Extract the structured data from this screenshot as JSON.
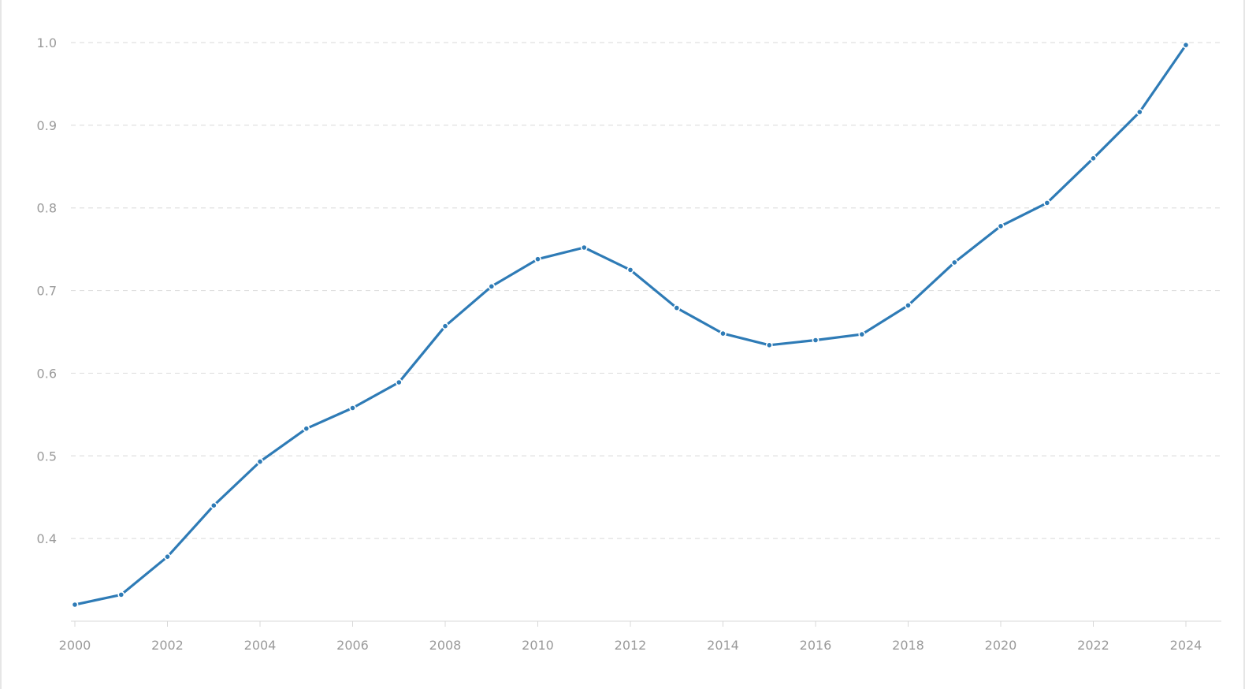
{
  "chart_data": {
    "type": "line",
    "title": "",
    "xlabel": "",
    "ylabel": "",
    "x": [
      2000,
      2001,
      2002,
      2003,
      2004,
      2005,
      2006,
      2007,
      2008,
      2009,
      2010,
      2011,
      2012,
      2013,
      2014,
      2015,
      2016,
      2017,
      2018,
      2019,
      2020,
      2021,
      2022,
      2023,
      2024
    ],
    "series": [
      {
        "values": [
          0.32,
          0.332,
          0.378,
          0.44,
          0.493,
          0.533,
          0.558,
          0.589,
          0.657,
          0.705,
          0.738,
          0.752,
          0.725,
          0.679,
          0.648,
          0.634,
          0.64,
          0.647,
          0.682,
          0.734,
          0.778,
          0.806,
          0.86,
          0.916,
          0.997
        ],
        "color": "#2e7bb6"
      }
    ],
    "xticks": [
      "2000",
      "2002",
      "2004",
      "2006",
      "2008",
      "2010",
      "2012",
      "2014",
      "2016",
      "2018",
      "2020",
      "2022",
      "2024"
    ],
    "yticks": [
      "0.4",
      "0.5",
      "0.6",
      "0.7",
      "0.8",
      "0.9",
      "1.0"
    ],
    "ylim": [
      0.3,
      1.0
    ],
    "xlim": [
      2000,
      2024
    ],
    "grid": "horizontal-dashed",
    "legend": "none"
  },
  "colors": {
    "line": "#2e7bb6",
    "grid": "#e0e0e0",
    "tick_text": "#9a9a9a",
    "axis": "#d8d8d8"
  }
}
